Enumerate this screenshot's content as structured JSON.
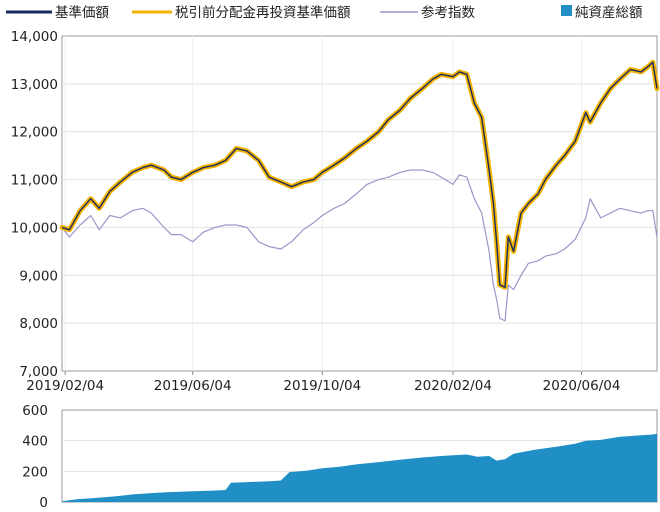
{
  "chart_data": [
    {
      "type": "line",
      "ylim": [
        7000,
        14000
      ],
      "y_ticks": [
        "7,000",
        "8,000",
        "9,000",
        "10,000",
        "11,000",
        "12,000",
        "13,000",
        "14,000"
      ],
      "x_ticks": [
        {
          "date": "2019-02-04",
          "label": "2019/02/04"
        },
        {
          "date": "2019-06-04",
          "label": "2019/06/04"
        },
        {
          "date": "2019-10-04",
          "label": "2019/10/04"
        },
        {
          "date": "2020-02-04",
          "label": "2020/02/04"
        },
        {
          "date": "2020-06-04",
          "label": "2020/06/04"
        }
      ],
      "x_range": [
        "2019-02-01",
        "2020-08-14"
      ],
      "grid": true,
      "legend": "top",
      "series": [
        {
          "name": "基準価額",
          "color": "#1a2a5e",
          "points": [
            [
              "2019-02-01",
              10000
            ],
            [
              "2019-02-08",
              9950
            ],
            [
              "2019-02-18",
              10350
            ],
            [
              "2019-02-28",
              10600
            ],
            [
              "2019-03-08",
              10400
            ],
            [
              "2019-03-18",
              10750
            ],
            [
              "2019-03-28",
              10950
            ],
            [
              "2019-04-08",
              11150
            ],
            [
              "2019-04-18",
              11250
            ],
            [
              "2019-04-26",
              11300
            ],
            [
              "2019-05-08",
              11200
            ],
            [
              "2019-05-15",
              11050
            ],
            [
              "2019-05-24",
              11000
            ],
            [
              "2019-06-04",
              11150
            ],
            [
              "2019-06-14",
              11250
            ],
            [
              "2019-06-25",
              11300
            ],
            [
              "2019-07-05",
              11400
            ],
            [
              "2019-07-15",
              11650
            ],
            [
              "2019-07-25",
              11600
            ],
            [
              "2019-08-05",
              11400
            ],
            [
              "2019-08-15",
              11050
            ],
            [
              "2019-08-26",
              10950
            ],
            [
              "2019-09-05",
              10850
            ],
            [
              "2019-09-16",
              10950
            ],
            [
              "2019-09-26",
              11000
            ],
            [
              "2019-10-04",
              11150
            ],
            [
              "2019-10-15",
              11300
            ],
            [
              "2019-10-25",
              11450
            ],
            [
              "2019-11-05",
              11650
            ],
            [
              "2019-11-15",
              11800
            ],
            [
              "2019-11-26",
              12000
            ],
            [
              "2019-12-05",
              12250
            ],
            [
              "2019-12-16",
              12450
            ],
            [
              "2019-12-26",
              12700
            ],
            [
              "2020-01-06",
              12900
            ],
            [
              "2020-01-16",
              13100
            ],
            [
              "2020-01-24",
              13200
            ],
            [
              "2020-02-04",
              13150
            ],
            [
              "2020-02-10",
              13250
            ],
            [
              "2020-02-17",
              13200
            ],
            [
              "2020-02-24",
              12600
            ],
            [
              "2020-03-02",
              12300
            ],
            [
              "2020-03-09",
              11200
            ],
            [
              "2020-03-13",
              10500
            ],
            [
              "2020-03-16",
              9700
            ],
            [
              "2020-03-19",
              8800
            ],
            [
              "2020-03-24",
              8750
            ],
            [
              "2020-03-27",
              9800
            ],
            [
              "2020-04-01",
              9500
            ],
            [
              "2020-04-08",
              10300
            ],
            [
              "2020-04-15",
              10500
            ],
            [
              "2020-04-24",
              10700
            ],
            [
              "2020-05-01",
              11000
            ],
            [
              "2020-05-11",
              11300
            ],
            [
              "2020-05-19",
              11500
            ],
            [
              "2020-05-29",
              11800
            ],
            [
              "2020-06-08",
              12400
            ],
            [
              "2020-06-12",
              12200
            ],
            [
              "2020-06-22",
              12600
            ],
            [
              "2020-07-01",
              12900
            ],
            [
              "2020-07-10",
              13100
            ],
            [
              "2020-07-20",
              13300
            ],
            [
              "2020-07-30",
              13250
            ],
            [
              "2020-08-05",
              13350
            ],
            [
              "2020-08-10",
              13450
            ],
            [
              "2020-08-14",
              12900
            ]
          ]
        },
        {
          "name": "税引前分配金再投資基準価額",
          "color": "#f2b200",
          "points": [
            [
              "2019-02-01",
              10000
            ],
            [
              "2019-02-08",
              9950
            ],
            [
              "2019-02-18",
              10350
            ],
            [
              "2019-02-28",
              10600
            ],
            [
              "2019-03-08",
              10400
            ],
            [
              "2019-03-18",
              10750
            ],
            [
              "2019-03-28",
              10950
            ],
            [
              "2019-04-08",
              11150
            ],
            [
              "2019-04-18",
              11250
            ],
            [
              "2019-04-26",
              11300
            ],
            [
              "2019-05-08",
              11200
            ],
            [
              "2019-05-15",
              11050
            ],
            [
              "2019-05-24",
              11000
            ],
            [
              "2019-06-04",
              11150
            ],
            [
              "2019-06-14",
              11250
            ],
            [
              "2019-06-25",
              11300
            ],
            [
              "2019-07-05",
              11400
            ],
            [
              "2019-07-15",
              11650
            ],
            [
              "2019-07-25",
              11600
            ],
            [
              "2019-08-05",
              11400
            ],
            [
              "2019-08-15",
              11050
            ],
            [
              "2019-08-26",
              10950
            ],
            [
              "2019-09-05",
              10850
            ],
            [
              "2019-09-16",
              10950
            ],
            [
              "2019-09-26",
              11000
            ],
            [
              "2019-10-04",
              11150
            ],
            [
              "2019-10-15",
              11300
            ],
            [
              "2019-10-25",
              11450
            ],
            [
              "2019-11-05",
              11650
            ],
            [
              "2019-11-15",
              11800
            ],
            [
              "2019-11-26",
              12000
            ],
            [
              "2019-12-05",
              12250
            ],
            [
              "2019-12-16",
              12450
            ],
            [
              "2019-12-26",
              12700
            ],
            [
              "2020-01-06",
              12900
            ],
            [
              "2020-01-16",
              13100
            ],
            [
              "2020-01-24",
              13200
            ],
            [
              "2020-02-04",
              13150
            ],
            [
              "2020-02-10",
              13250
            ],
            [
              "2020-02-17",
              13200
            ],
            [
              "2020-02-24",
              12600
            ],
            [
              "2020-03-02",
              12300
            ],
            [
              "2020-03-09",
              11200
            ],
            [
              "2020-03-13",
              10500
            ],
            [
              "2020-03-16",
              9700
            ],
            [
              "2020-03-19",
              8800
            ],
            [
              "2020-03-24",
              8750
            ],
            [
              "2020-03-27",
              9800
            ],
            [
              "2020-04-01",
              9500
            ],
            [
              "2020-04-08",
              10300
            ],
            [
              "2020-04-15",
              10500
            ],
            [
              "2020-04-24",
              10700
            ],
            [
              "2020-05-01",
              11000
            ],
            [
              "2020-05-11",
              11300
            ],
            [
              "2020-05-19",
              11500
            ],
            [
              "2020-05-29",
              11800
            ],
            [
              "2020-06-08",
              12400
            ],
            [
              "2020-06-12",
              12200
            ],
            [
              "2020-06-22",
              12600
            ],
            [
              "2020-07-01",
              12900
            ],
            [
              "2020-07-10",
              13100
            ],
            [
              "2020-07-20",
              13300
            ],
            [
              "2020-07-30",
              13250
            ],
            [
              "2020-08-05",
              13350
            ],
            [
              "2020-08-10",
              13450
            ],
            [
              "2020-08-14",
              12900
            ]
          ]
        },
        {
          "name": "参考指数",
          "color": "#9c96c8",
          "points": [
            [
              "2019-02-01",
              10000
            ],
            [
              "2019-02-08",
              9800
            ],
            [
              "2019-02-18",
              10050
            ],
            [
              "2019-02-28",
              10250
            ],
            [
              "2019-03-08",
              9950
            ],
            [
              "2019-03-18",
              10250
            ],
            [
              "2019-03-28",
              10200
            ],
            [
              "2019-04-08",
              10350
            ],
            [
              "2019-04-18",
              10400
            ],
            [
              "2019-04-26",
              10300
            ],
            [
              "2019-05-08",
              10000
            ],
            [
              "2019-05-15",
              9850
            ],
            [
              "2019-05-24",
              9850
            ],
            [
              "2019-06-04",
              9700
            ],
            [
              "2019-06-14",
              9900
            ],
            [
              "2019-06-25",
              10000
            ],
            [
              "2019-07-05",
              10050
            ],
            [
              "2019-07-15",
              10050
            ],
            [
              "2019-07-25",
              10000
            ],
            [
              "2019-08-05",
              9700
            ],
            [
              "2019-08-15",
              9600
            ],
            [
              "2019-08-26",
              9550
            ],
            [
              "2019-09-05",
              9700
            ],
            [
              "2019-09-16",
              9950
            ],
            [
              "2019-09-26",
              10100
            ],
            [
              "2019-10-04",
              10250
            ],
            [
              "2019-10-15",
              10400
            ],
            [
              "2019-10-25",
              10500
            ],
            [
              "2019-11-05",
              10700
            ],
            [
              "2019-11-15",
              10900
            ],
            [
              "2019-11-26",
              11000
            ],
            [
              "2019-12-05",
              11050
            ],
            [
              "2019-12-16",
              11150
            ],
            [
              "2019-12-26",
              11200
            ],
            [
              "2020-01-06",
              11200
            ],
            [
              "2020-01-16",
              11150
            ],
            [
              "2020-01-24",
              11050
            ],
            [
              "2020-02-04",
              10900
            ],
            [
              "2020-02-10",
              11100
            ],
            [
              "2020-02-17",
              11050
            ],
            [
              "2020-02-24",
              10600
            ],
            [
              "2020-03-02",
              10300
            ],
            [
              "2020-03-09",
              9500
            ],
            [
              "2020-03-13",
              8800
            ],
            [
              "2020-03-16",
              8500
            ],
            [
              "2020-03-19",
              8100
            ],
            [
              "2020-03-24",
              8050
            ],
            [
              "2020-03-27",
              8800
            ],
            [
              "2020-04-01",
              8700
            ],
            [
              "2020-04-08",
              9000
            ],
            [
              "2020-04-15",
              9250
            ],
            [
              "2020-04-24",
              9300
            ],
            [
              "2020-05-01",
              9400
            ],
            [
              "2020-05-11",
              9450
            ],
            [
              "2020-05-19",
              9550
            ],
            [
              "2020-05-29",
              9750
            ],
            [
              "2020-06-08",
              10200
            ],
            [
              "2020-06-12",
              10600
            ],
            [
              "2020-06-22",
              10200
            ],
            [
              "2020-07-01",
              10300
            ],
            [
              "2020-07-10",
              10400
            ],
            [
              "2020-07-20",
              10350
            ],
            [
              "2020-07-30",
              10300
            ],
            [
              "2020-08-05",
              10350
            ],
            [
              "2020-08-10",
              10350
            ],
            [
              "2020-08-14",
              9800
            ]
          ]
        }
      ]
    },
    {
      "type": "area",
      "ylim": [
        0,
        600
      ],
      "y_ticks": [
        "0",
        "200",
        "400",
        "600"
      ],
      "grid": true,
      "series": [
        {
          "name": "純資産総額",
          "color": "#1f8fc6",
          "points": [
            [
              "2019-02-01",
              5
            ],
            [
              "2019-02-15",
              18
            ],
            [
              "2019-03-01",
              25
            ],
            [
              "2019-03-20",
              35
            ],
            [
              "2019-04-10",
              50
            ],
            [
              "2019-04-26",
              58
            ],
            [
              "2019-05-10",
              64
            ],
            [
              "2019-06-04",
              70
            ],
            [
              "2019-06-20",
              74
            ],
            [
              "2019-07-05",
              78
            ],
            [
              "2019-07-10",
              125
            ],
            [
              "2019-07-25",
              130
            ],
            [
              "2019-08-15",
              135
            ],
            [
              "2019-08-26",
              140
            ],
            [
              "2019-09-03",
              195
            ],
            [
              "2019-09-20",
              205
            ],
            [
              "2019-10-04",
              220
            ],
            [
              "2019-10-20",
              230
            ],
            [
              "2019-11-05",
              245
            ],
            [
              "2019-11-26",
              260
            ],
            [
              "2019-12-16",
              275
            ],
            [
              "2020-01-06",
              290
            ],
            [
              "2020-01-24",
              300
            ],
            [
              "2020-02-04",
              305
            ],
            [
              "2020-02-17",
              310
            ],
            [
              "2020-02-27",
              295
            ],
            [
              "2020-03-09",
              300
            ],
            [
              "2020-03-16",
              270
            ],
            [
              "2020-03-24",
              280
            ],
            [
              "2020-04-01",
              315
            ],
            [
              "2020-04-20",
              340
            ],
            [
              "2020-05-11",
              360
            ],
            [
              "2020-05-29",
              380
            ],
            [
              "2020-06-08",
              400
            ],
            [
              "2020-06-22",
              405
            ],
            [
              "2020-07-10",
              425
            ],
            [
              "2020-07-20",
              430
            ],
            [
              "2020-07-30",
              435
            ],
            [
              "2020-08-10",
              440
            ],
            [
              "2020-08-14",
              445
            ]
          ]
        }
      ]
    }
  ]
}
